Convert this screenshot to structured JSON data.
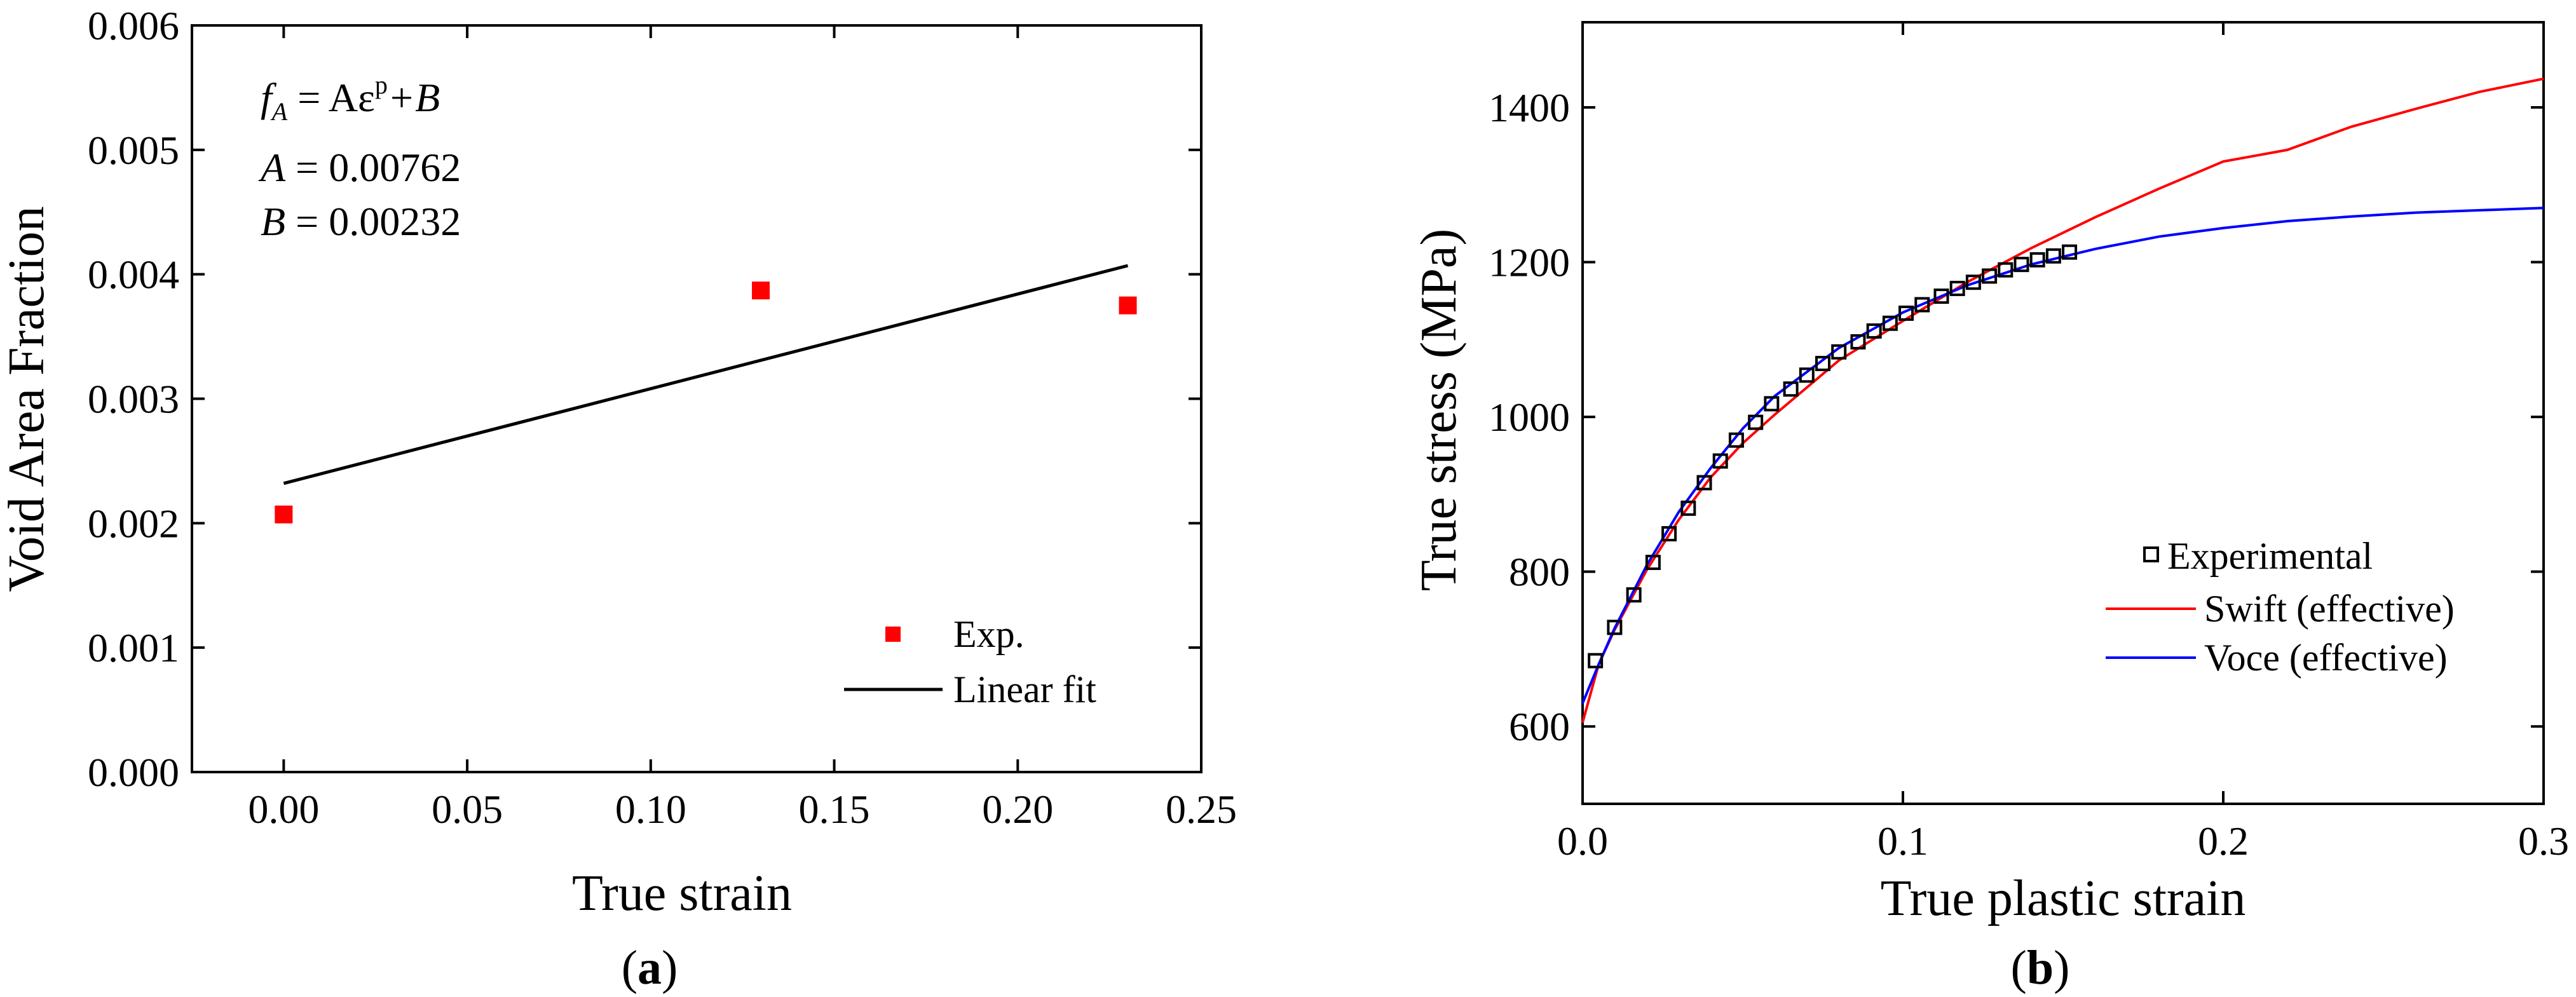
{
  "chart_data": [
    {
      "type": "scatter",
      "panel_label": "a",
      "xlabel": "True strain",
      "ylabel": "Void Area Fraction",
      "xlim": [
        -0.025,
        0.25
      ],
      "ylim": [
        0.0,
        0.006
      ],
      "xticks": [
        "0.00",
        "0.05",
        "0.10",
        "0.15",
        "0.20",
        "0.25"
      ],
      "yticks": [
        "0.000",
        "0.001",
        "0.002",
        "0.003",
        "0.004",
        "0.005",
        "0.006"
      ],
      "xtick_values": [
        0.0,
        0.05,
        0.1,
        0.15,
        0.2,
        0.25
      ],
      "ytick_values": [
        0.0,
        0.001,
        0.002,
        0.003,
        0.004,
        0.005,
        0.006
      ],
      "annotation": {
        "line1_lhs": "f",
        "line1_sub": "A",
        "line1_rhs": " = Aε",
        "line1_sup": "p",
        "line1_tail": "+B",
        "line2_name": "A",
        "line2_value": " = 0.00762",
        "line3_name": "B",
        "line3_value": " = 0.00232"
      },
      "series": [
        {
          "name": "Exp.",
          "kind": "scatter",
          "color": "#ff0000",
          "x": [
            0.0,
            0.13,
            0.23
          ],
          "y": [
            0.00207,
            0.00387,
            0.00375
          ]
        },
        {
          "name": "Linear fit",
          "kind": "line",
          "color": "#000000",
          "x": [
            0.0,
            0.23
          ],
          "y": [
            0.00232,
            0.00407
          ]
        }
      ],
      "legend_position": "bottom-right"
    },
    {
      "type": "line",
      "panel_label": "b",
      "xlabel": "True plastic strain",
      "ylabel": "True stress (MPa)",
      "xlim": [
        0.0,
        0.3
      ],
      "ylim": [
        500,
        1510
      ],
      "xticks": [
        "0.0",
        "0.1",
        "0.2",
        "0.3"
      ],
      "yticks": [
        "600",
        "800",
        "1000",
        "1200",
        "1400"
      ],
      "xtick_values": [
        0.0,
        0.1,
        0.2,
        0.3
      ],
      "ytick_values": [
        600,
        800,
        1000,
        1200,
        1400
      ],
      "series": [
        {
          "name": "Experimental",
          "kind": "scatter",
          "color": "#000000",
          "x": [
            0.004,
            0.01,
            0.016,
            0.022,
            0.027,
            0.033,
            0.038,
            0.043,
            0.048,
            0.054,
            0.059,
            0.065,
            0.07,
            0.075,
            0.08,
            0.086,
            0.091,
            0.096,
            0.101,
            0.106,
            0.112,
            0.117,
            0.122,
            0.127,
            0.132,
            0.137,
            0.142,
            0.147,
            0.152
          ],
          "y": [
            685,
            728,
            770,
            812,
            849,
            882,
            915,
            943,
            970,
            993,
            1017,
            1036,
            1054,
            1069,
            1084,
            1097,
            1111,
            1121,
            1134,
            1145,
            1156,
            1166,
            1174,
            1182,
            1190,
            1197,
            1203,
            1208,
            1213
          ]
        },
        {
          "name": "Swift (effective)",
          "kind": "line",
          "color": "#ff0000",
          "x": [
            0.0,
            0.005,
            0.01,
            0.02,
            0.03,
            0.04,
            0.05,
            0.06,
            0.08,
            0.1,
            0.12,
            0.14,
            0.16,
            0.18,
            0.2,
            0.22,
            0.24,
            0.26,
            0.28,
            0.3
          ],
          "y": [
            605,
            680,
            725,
            802,
            867,
            922,
            966,
            1003,
            1073,
            1124,
            1174,
            1218,
            1258,
            1295,
            1330,
            1345,
            1375,
            1398,
            1420,
            1437
          ]
        },
        {
          "name": "Voce (effective)",
          "kind": "line",
          "color": "#0000ff",
          "x": [
            0.0,
            0.005,
            0.01,
            0.02,
            0.03,
            0.04,
            0.05,
            0.06,
            0.08,
            0.1,
            0.12,
            0.14,
            0.16,
            0.18,
            0.2,
            0.22,
            0.24,
            0.26,
            0.28,
            0.3
          ],
          "y": [
            630,
            680,
            727,
            808,
            877,
            934,
            985,
            1027,
            1089,
            1135,
            1170,
            1197,
            1217,
            1233,
            1244,
            1253,
            1259,
            1264,
            1267,
            1270
          ]
        }
      ],
      "legend_position": "right-middle"
    }
  ]
}
